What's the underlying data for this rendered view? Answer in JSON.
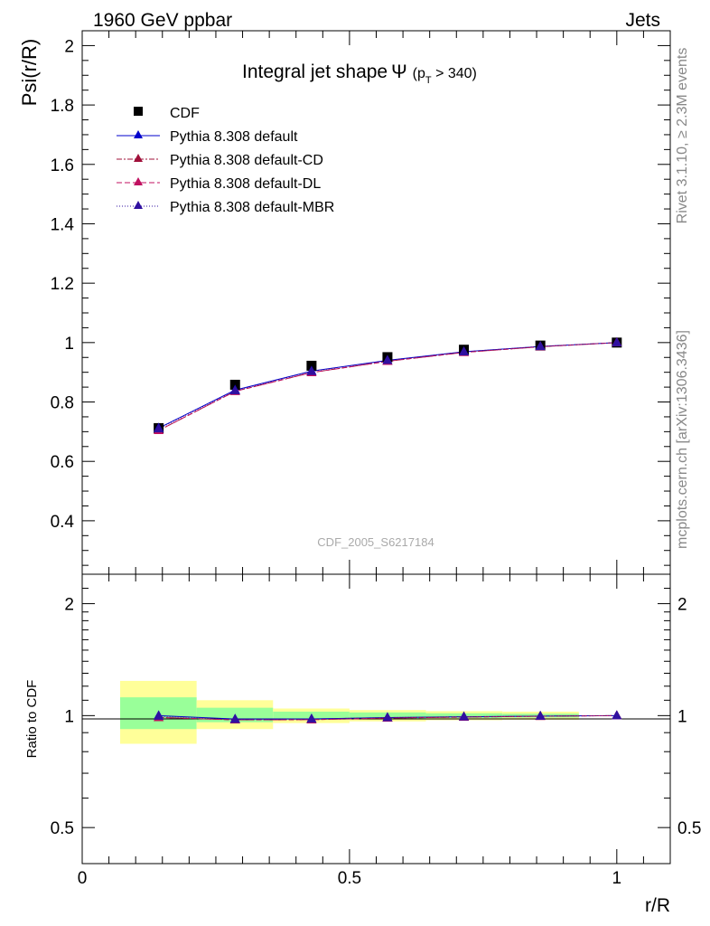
{
  "header": {
    "left": "1960 GeV ppbar",
    "right": "Jets"
  },
  "side_labels": {
    "rivet": "Rivet 3.1.10, ≥ 2.3M events",
    "mcplots": "mcplots.cern.ch [arXiv:1306.3436]"
  },
  "chart_data": [
    {
      "type": "line",
      "title": "Integral jet shape",
      "title_symbol": "Ψ",
      "title_cut_p": "p",
      "title_cut_sub": "T",
      "title_cut_rest": " > 340)",
      "title_cut_open": "(",
      "ylabel": "Psi(r/R)",
      "xlabel": "r/R",
      "watermark": "CDF_2005_S6217184",
      "xlim": [
        0,
        1.1
      ],
      "ylim": [
        0.22,
        2.05
      ],
      "y_ticks": [
        {
          "value": 0.4,
          "label": "0.4"
        },
        {
          "value": 0.6,
          "label": "0.6"
        },
        {
          "value": 0.8,
          "label": "0.8"
        },
        {
          "value": 1.0,
          "label": "1"
        },
        {
          "value": 1.2,
          "label": "1.2"
        },
        {
          "value": 1.4,
          "label": "1.4"
        },
        {
          "value": 1.6,
          "label": "1.6"
        },
        {
          "value": 1.8,
          "label": "1.8"
        },
        {
          "value": 2.0,
          "label": "2"
        }
      ],
      "legend_position": "top-left",
      "x": [
        0.143,
        0.286,
        0.429,
        0.571,
        0.714,
        0.857,
        1.0
      ],
      "data": {
        "name": "CDF",
        "values": [
          0.712,
          0.858,
          0.922,
          0.951,
          0.976,
          0.99,
          1.0
        ],
        "color": "#000000",
        "marker": "square"
      },
      "series": [
        {
          "name": "Pythia 8.308 default",
          "values": [
            0.712,
            0.84,
            0.904,
            0.94,
            0.969,
            0.987,
            1.0
          ],
          "color": "#0000cc",
          "dash": "",
          "marker": "triangle"
        },
        {
          "name": "Pythia 8.308 default-CD",
          "values": [
            0.704,
            0.836,
            0.899,
            0.937,
            0.967,
            0.986,
            1.0
          ],
          "color": "#a0103a",
          "dash": "6,2,2,2",
          "marker": "triangle"
        },
        {
          "name": "Pythia 8.308 default-DL",
          "values": [
            0.704,
            0.836,
            0.899,
            0.937,
            0.967,
            0.986,
            1.0
          ],
          "color": "#c01060",
          "dash": "6,3",
          "marker": "triangle"
        },
        {
          "name": "Pythia 8.308 default-MBR",
          "values": [
            0.71,
            0.838,
            0.903,
            0.94,
            0.969,
            0.987,
            1.0
          ],
          "color": "#3010a0",
          "dash": "1,2",
          "marker": "triangle"
        }
      ]
    },
    {
      "type": "line",
      "ylabel": "Ratio to CDF",
      "xlabel": "r/R",
      "xlim": [
        0,
        1.1
      ],
      "ylim": [
        0.4,
        2.4
      ],
      "y_scale": "log",
      "y_ticks": [
        {
          "value": 0.5,
          "label": "0.5"
        },
        {
          "value": 1.0,
          "label": "1"
        },
        {
          "value": 2.0,
          "label": "2"
        }
      ],
      "x_ticks": [
        {
          "value": 0,
          "label": "0"
        },
        {
          "value": 0.5,
          "label": "0.5"
        },
        {
          "value": 1.0,
          "label": "1"
        }
      ],
      "bands": [
        {
          "x0": 0.071,
          "x1": 0.214,
          "yellow": [
            0.84,
            1.24
          ],
          "green": [
            0.92,
            1.12
          ]
        },
        {
          "x0": 0.214,
          "x1": 0.357,
          "yellow": [
            0.92,
            1.1
          ],
          "green": [
            0.96,
            1.05
          ]
        },
        {
          "x0": 0.357,
          "x1": 0.5,
          "yellow": [
            0.955,
            1.045
          ],
          "green": [
            0.975,
            1.025
          ]
        },
        {
          "x0": 0.5,
          "x1": 0.643,
          "yellow": [
            0.965,
            1.035
          ],
          "green": [
            0.98,
            1.02
          ]
        },
        {
          "x0": 0.643,
          "x1": 0.786,
          "yellow": [
            0.972,
            1.028
          ],
          "green": [
            0.985,
            1.015
          ]
        },
        {
          "x0": 0.786,
          "x1": 0.929,
          "yellow": [
            0.975,
            1.025
          ],
          "green": [
            0.988,
            1.012
          ]
        }
      ],
      "x": [
        0.143,
        0.286,
        0.429,
        0.571,
        0.714,
        0.857,
        1.0
      ],
      "series": [
        {
          "name": "Pythia 8.308 default",
          "values": [
            1.0,
            0.979,
            0.98,
            0.988,
            0.993,
            0.997,
            1.0
          ],
          "color": "#0000cc",
          "dash": ""
        },
        {
          "name": "Pythia 8.308 default-CD",
          "values": [
            0.989,
            0.974,
            0.975,
            0.985,
            0.991,
            0.996,
            1.0
          ],
          "color": "#a0103a",
          "dash": "6,2,2,2"
        },
        {
          "name": "Pythia 8.308 default-DL",
          "values": [
            0.989,
            0.974,
            0.975,
            0.985,
            0.991,
            0.996,
            1.0
          ],
          "color": "#c01060",
          "dash": "6,3"
        },
        {
          "name": "Pythia 8.308 default-MBR",
          "values": [
            0.997,
            0.977,
            0.979,
            0.988,
            0.993,
            0.997,
            1.0
          ],
          "color": "#3010a0",
          "dash": "1,2"
        }
      ]
    }
  ]
}
